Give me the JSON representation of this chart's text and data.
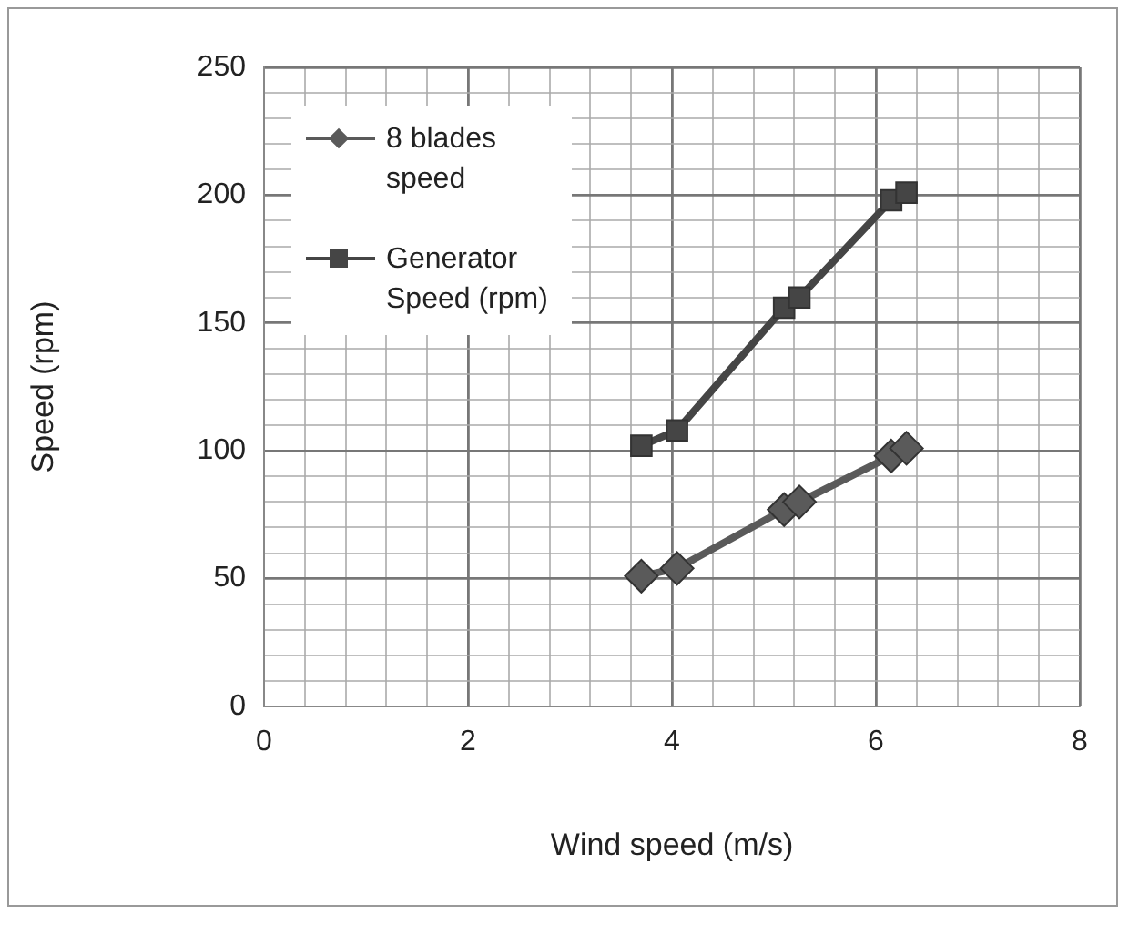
{
  "chart_data": {
    "type": "line",
    "xlabel": "Wind speed (m/s)",
    "ylabel": "Speed (rpm)",
    "xlim": [
      0,
      8
    ],
    "ylim": [
      0,
      250
    ],
    "xticks": [
      0,
      {
        "value": 0.4,
        "label": null
      },
      {
        "value": 0.8,
        "label": null
      },
      {
        "value": 1.2,
        "label": null
      },
      {
        "value": 1.6,
        "label": null
      },
      2,
      {
        "value": 2.4,
        "label": null
      },
      {
        "value": 2.8,
        "label": null
      },
      {
        "value": 3.2,
        "label": null
      },
      {
        "value": 3.6,
        "label": null
      },
      4,
      {
        "value": 4.4,
        "label": null
      },
      {
        "value": 4.8,
        "label": null
      },
      {
        "value": 5.2,
        "label": null
      },
      {
        "value": 5.6,
        "label": null
      },
      6,
      {
        "value": 6.4,
        "label": null
      },
      {
        "value": 6.8,
        "label": null
      },
      {
        "value": 7.2,
        "label": null
      },
      {
        "value": 7.6,
        "label": null
      },
      8
    ],
    "yticks": [
      0,
      {
        "value": 10,
        "label": null
      },
      {
        "value": 20,
        "label": null
      },
      {
        "value": 30,
        "label": null
      },
      {
        "value": 40,
        "label": null
      },
      50,
      {
        "value": 60,
        "label": null
      },
      {
        "value": 70,
        "label": null
      },
      {
        "value": 80,
        "label": null
      },
      {
        "value": 90,
        "label": null
      },
      100,
      {
        "value": 110,
        "label": null
      },
      {
        "value": 120,
        "label": null
      },
      {
        "value": 130,
        "label": null
      },
      {
        "value": 140,
        "label": null
      },
      150,
      {
        "value": 160,
        "label": null
      },
      {
        "value": 170,
        "label": null
      },
      {
        "value": 180,
        "label": null
      },
      {
        "value": 190,
        "label": null
      },
      200,
      {
        "value": 210,
        "label": null
      },
      {
        "value": 220,
        "label": null
      },
      {
        "value": 230,
        "label": null
      },
      {
        "value": 240,
        "label": null
      },
      250
    ],
    "grid": true,
    "legend": "top left",
    "line_style": "solid",
    "series": [
      {
        "name": "8 blades speed",
        "color": "#5a5a5a",
        "marker": "diamond",
        "x": [
          3.7,
          4.05,
          5.1,
          5.25,
          6.15,
          6.3
        ],
        "values": [
          51,
          54,
          77,
          80,
          98,
          101
        ]
      },
      {
        "name": "Generator Speed (rpm)",
        "color": "#454545",
        "marker": "square",
        "x": [
          3.7,
          4.05,
          5.1,
          5.25,
          6.15,
          6.3
        ],
        "values": [
          102,
          108,
          156,
          160,
          198,
          201
        ]
      }
    ]
  }
}
